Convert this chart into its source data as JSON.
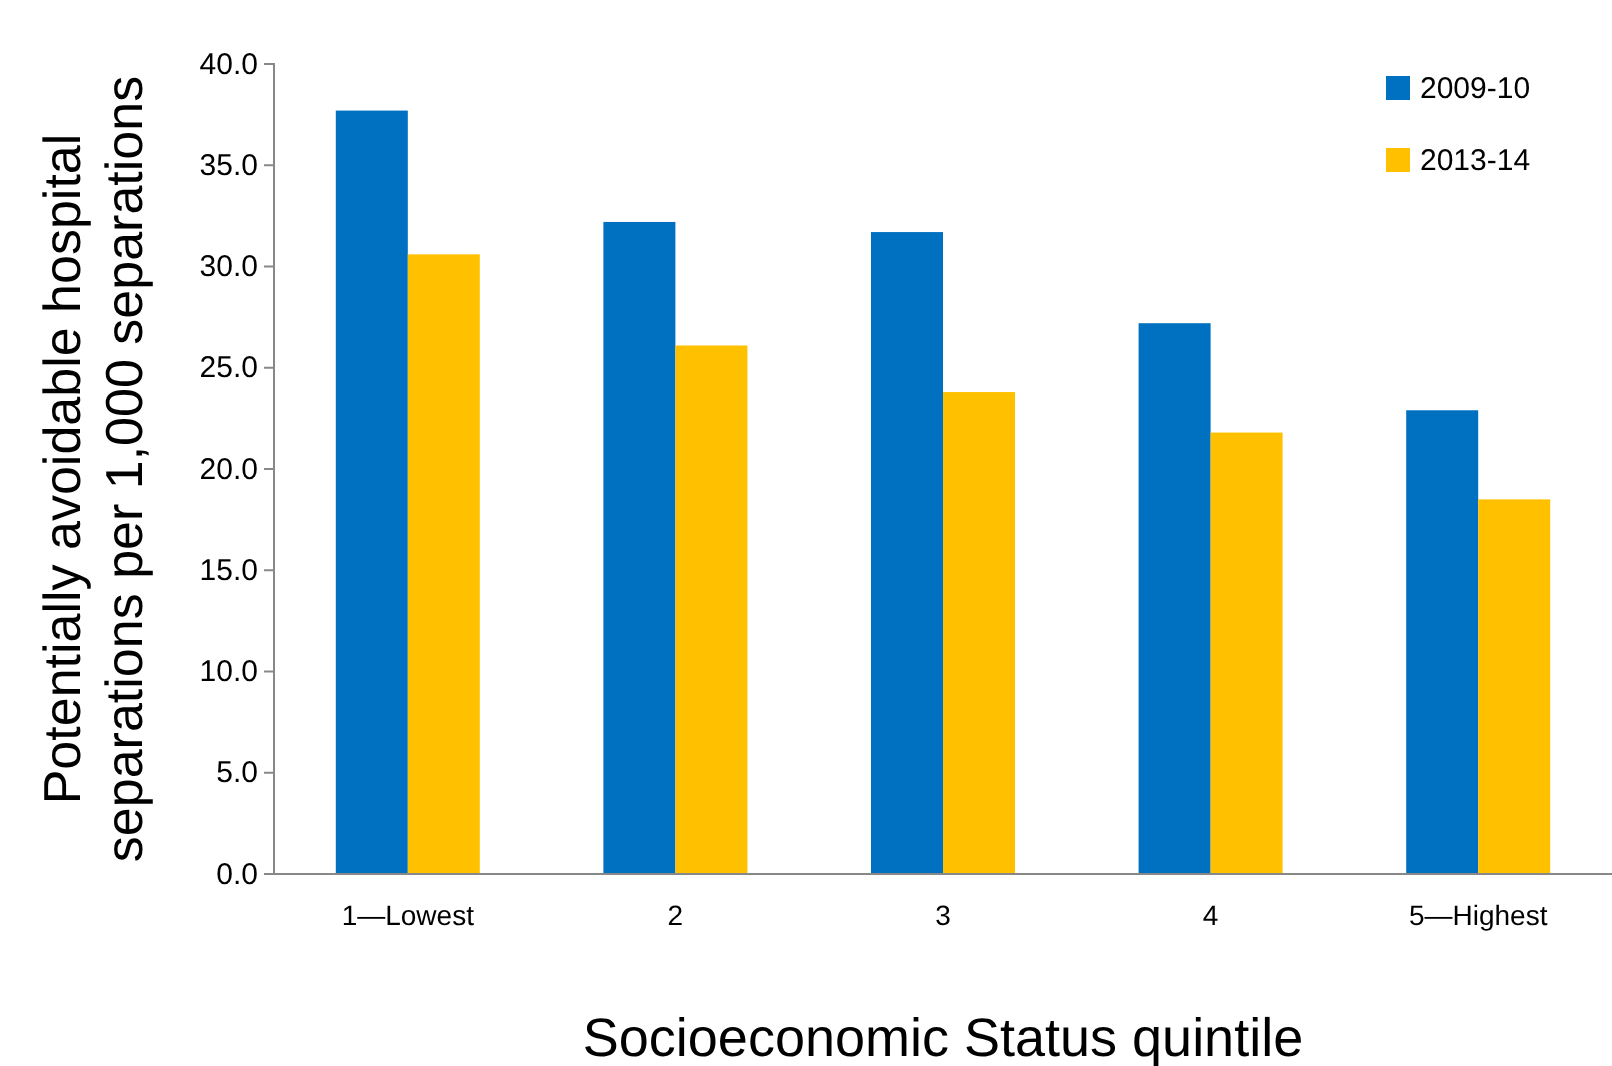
{
  "chart_data": {
    "type": "bar",
    "xlabel": "Socioeconomic Status quintile",
    "ylabel": "Potentially avoidable hospital\nseparations per 1,000 separations",
    "categories": [
      "1—Lowest",
      "2",
      "3",
      "4",
      "5—Highest"
    ],
    "series": [
      {
        "name": "2009-10",
        "color": "#0070c0",
        "values": [
          37.7,
          32.2,
          31.7,
          27.2,
          22.9
        ]
      },
      {
        "name": "2013-14",
        "color": "#ffc000",
        "values": [
          30.6,
          26.1,
          23.8,
          21.8,
          18.5
        ]
      }
    ],
    "ylim": [
      0,
      40
    ],
    "yticks": [
      {
        "value": 0,
        "label": "0.0"
      },
      {
        "value": 5,
        "label": "5.0"
      },
      {
        "value": 10,
        "label": "10.0"
      },
      {
        "value": 15,
        "label": "15.0"
      },
      {
        "value": 20,
        "label": "20.0"
      },
      {
        "value": 25,
        "label": "25.0"
      },
      {
        "value": 30,
        "label": "30.0"
      },
      {
        "value": 35,
        "label": "35.0"
      },
      {
        "value": 40,
        "label": "40.0"
      }
    ],
    "grid": false,
    "legend": "top right"
  }
}
